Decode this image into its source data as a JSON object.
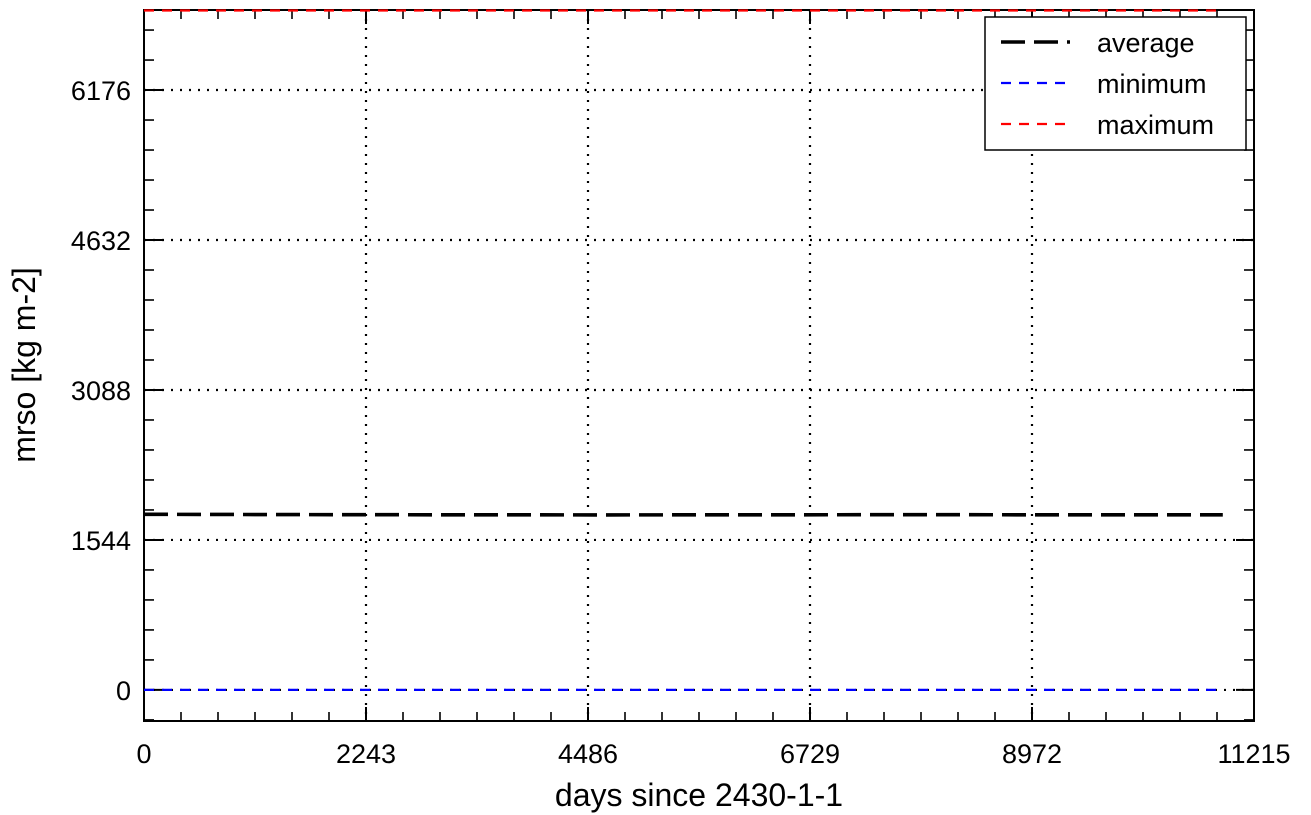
{
  "chart_data": {
    "type": "line",
    "xlabel": "days since 2430-1-1",
    "ylabel": "mrso [kg m-2]",
    "xlim": [
      0,
      11215
    ],
    "ylim": [
      -320,
      7000
    ],
    "x_ticks": [
      0,
      2243,
      4486,
      6729,
      8972,
      11215
    ],
    "y_ticks": [
      0,
      1544,
      3088,
      4632,
      6176
    ],
    "grid": true,
    "legend_position": "top-right",
    "x_range_data": [
      0,
      10900
    ],
    "series": [
      {
        "name": "average",
        "color": "#000000",
        "dash": "long",
        "values": [
          1808,
          1805,
          1803,
          1802,
          1803,
          1804,
          1803,
          1803
        ]
      },
      {
        "name": "minimum",
        "color": "#0000ff",
        "dash": "short",
        "values": [
          0,
          0,
          0,
          0,
          0,
          0,
          0,
          0
        ]
      },
      {
        "name": "maximum",
        "color": "#ff0000",
        "dash": "short",
        "values": [
          6995,
          6995,
          6995,
          6995,
          6995,
          6995,
          6995,
          6995
        ]
      }
    ]
  }
}
